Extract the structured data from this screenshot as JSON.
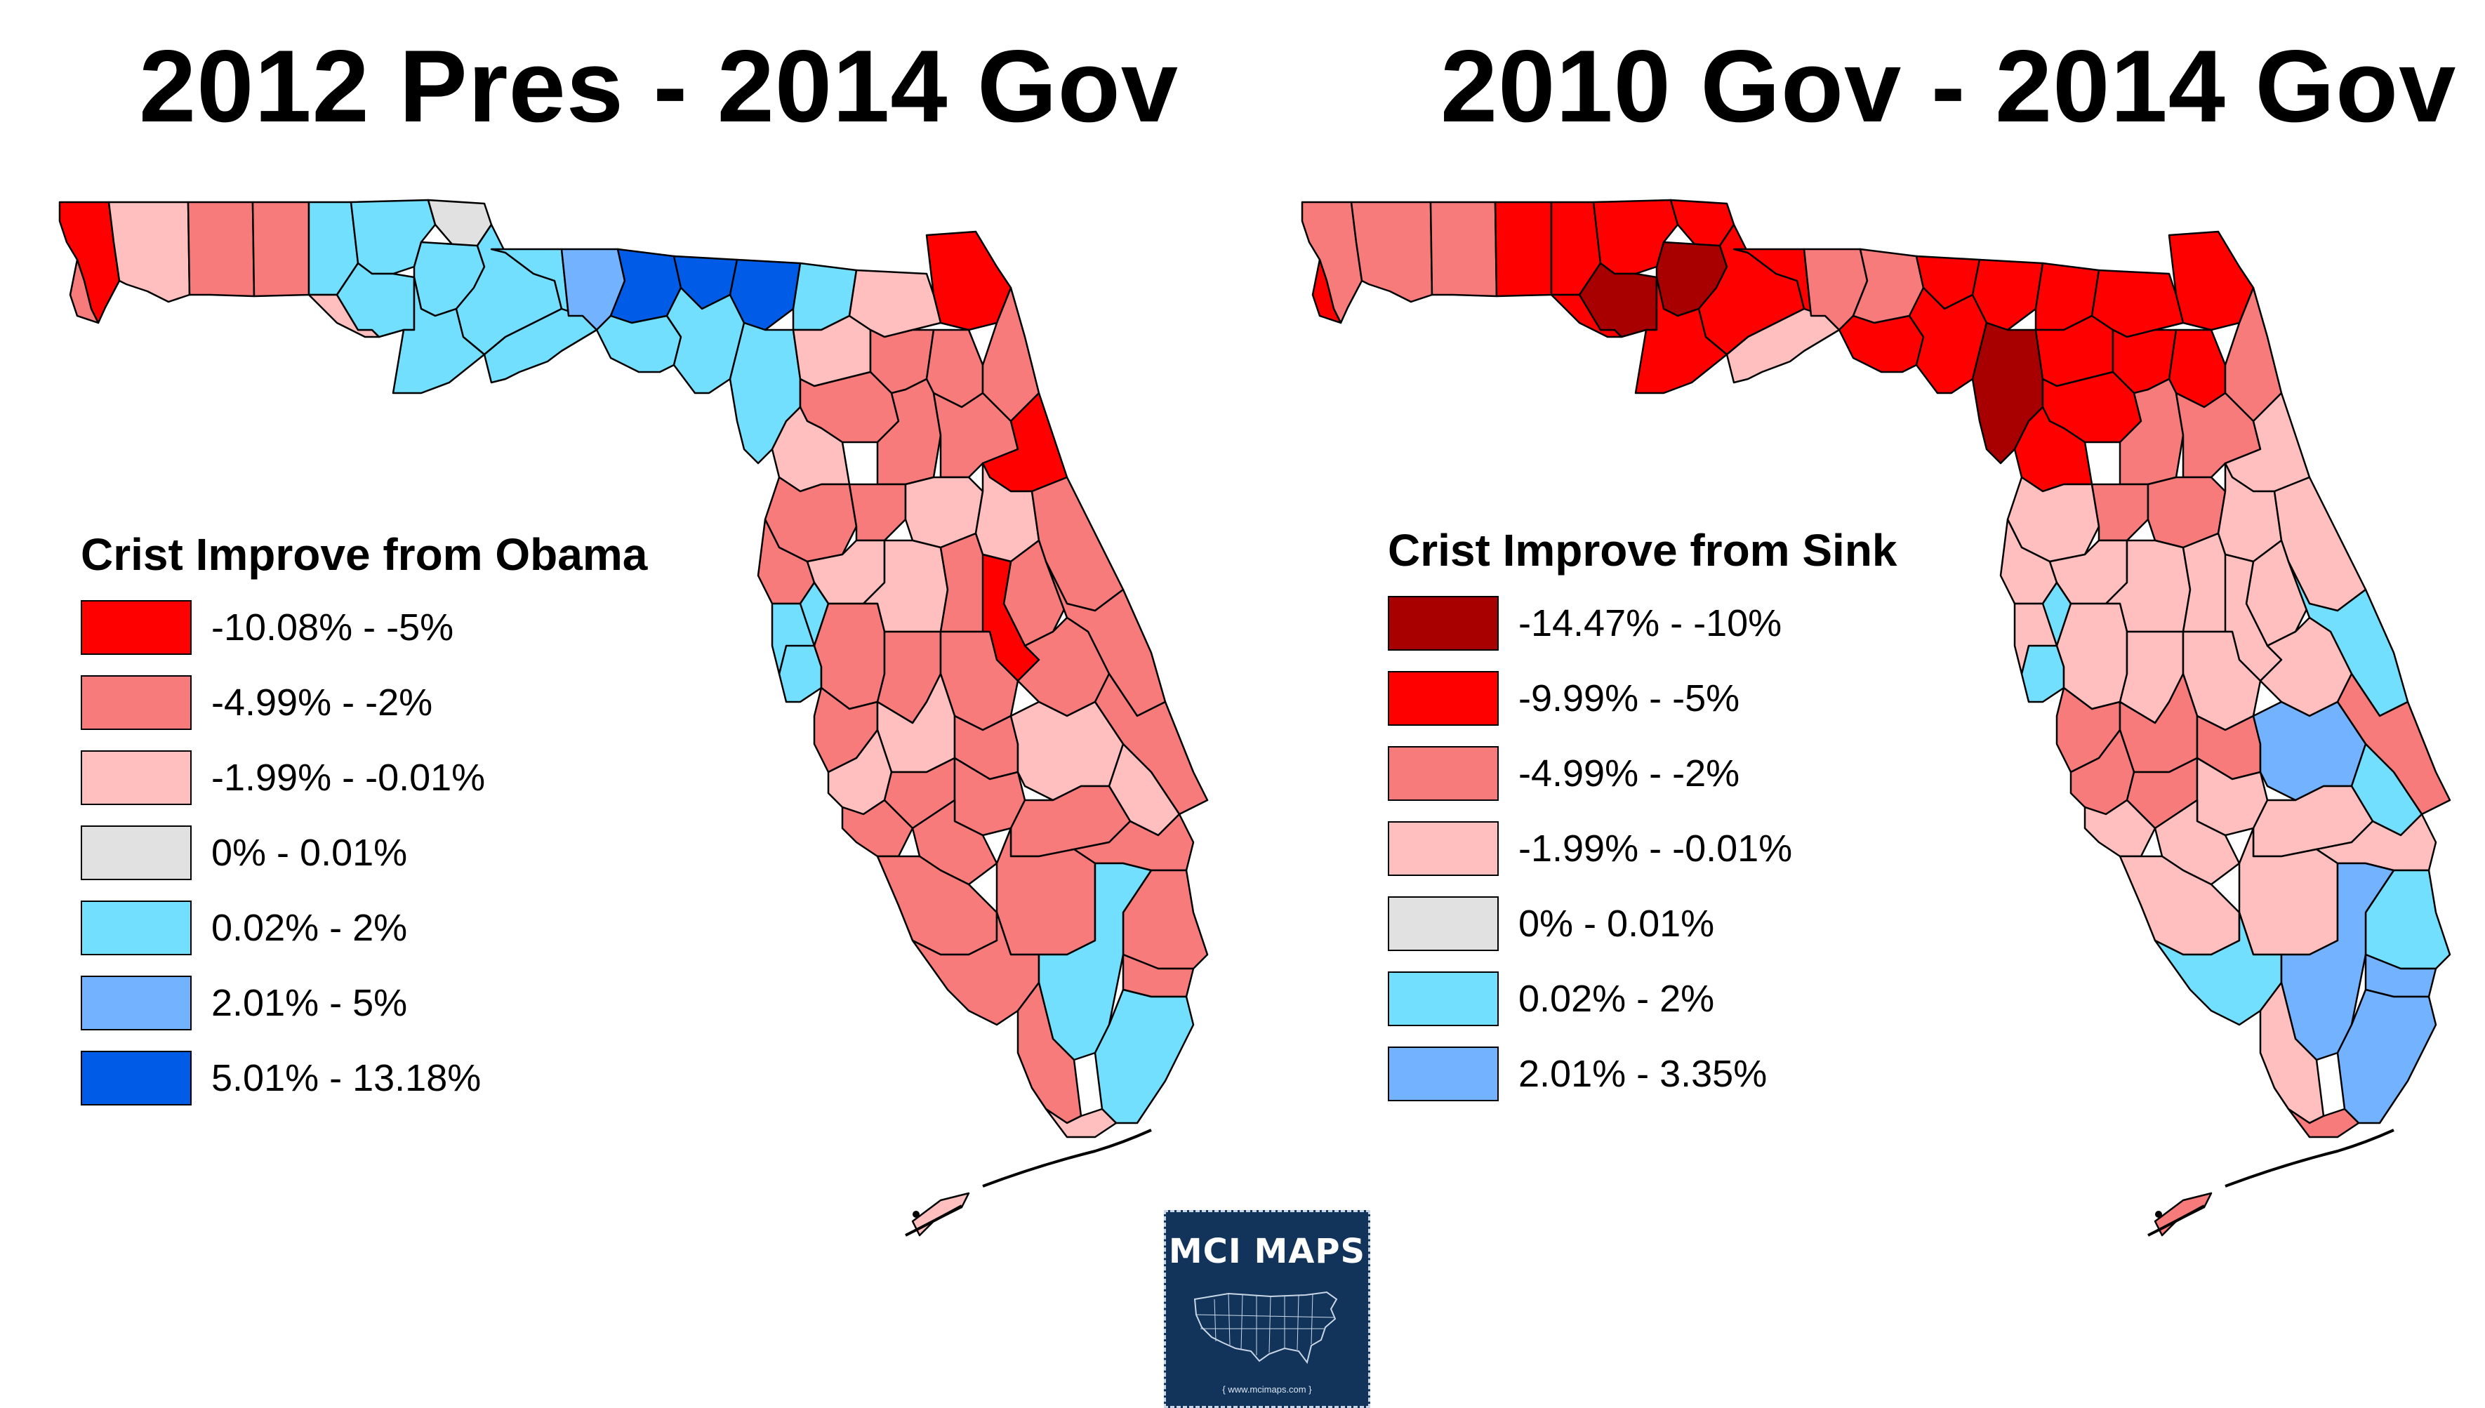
{
  "maps": [
    {
      "title": "2012 Pres - 2014 Gov",
      "legend_title": "Crist Improve from Obama",
      "legend": [
        {
          "label": "-10.08% - -5%",
          "color": "#ff0000"
        },
        {
          "label": "-4.99% - -2%",
          "color": "#f77b7b"
        },
        {
          "label": "-1.99% - -0.01%",
          "color": "#ffbfbf"
        },
        {
          "label": "0% - 0.01%",
          "color": "#e1e1e1"
        },
        {
          "label": "0.02% - 2%",
          "color": "#73dfff"
        },
        {
          "label": "2.01% - 5%",
          "color": "#73b2ff"
        },
        {
          "label": "5.01% - 13.18%",
          "color": "#005ce6"
        }
      ],
      "region_classes": [
        0,
        2,
        1,
        1,
        4,
        4,
        3,
        1,
        2,
        4,
        4,
        4,
        4,
        4,
        4,
        5,
        6,
        4,
        6,
        4,
        6,
        4,
        4,
        2,
        0,
        2,
        1,
        1,
        1,
        1,
        2,
        1,
        1,
        0,
        1,
        1,
        2,
        2,
        1,
        1,
        2,
        4,
        4,
        2,
        1,
        1,
        0,
        1,
        1,
        1,
        1,
        1,
        1,
        1,
        2,
        1,
        2,
        2,
        2,
        1,
        1,
        1,
        1,
        1,
        1,
        1,
        1,
        1,
        1,
        4,
        1,
        1,
        4
      ]
    },
    {
      "title": "2010 Gov - 2014 Gov",
      "legend_title": "Crist Improve from Sink",
      "legend": [
        {
          "label": "-14.47% - -10%",
          "color": "#a80000"
        },
        {
          "label": "-9.99% - -5%",
          "color": "#ff0000"
        },
        {
          "label": "-4.99% - -2%",
          "color": "#f77b7b"
        },
        {
          "label": "-1.99% - -0.01%",
          "color": "#ffbfbf"
        },
        {
          "label": "0% - 0.01%",
          "color": "#e1e1e1"
        },
        {
          "label": "0.02% - 2%",
          "color": "#73dfff"
        },
        {
          "label": "2.01% - 3.35%",
          "color": "#73b2ff"
        }
      ],
      "region_classes": [
        2,
        2,
        2,
        1,
        1,
        1,
        1,
        1,
        1,
        0,
        0,
        1,
        1,
        1,
        3,
        2,
        2,
        1,
        1,
        1,
        1,
        0,
        1,
        1,
        1,
        1,
        1,
        1,
        1,
        2,
        1,
        2,
        2,
        3,
        3,
        2,
        2,
        3,
        3,
        3,
        3,
        5,
        3,
        3,
        3,
        3,
        3,
        5,
        3,
        3,
        3,
        3,
        2,
        2,
        2,
        2,
        6,
        5,
        2,
        2,
        3,
        3,
        3,
        3,
        3,
        3,
        3,
        5,
        5,
        6,
        6,
        3,
        6
      ]
    }
  ],
  "logo": {
    "text": "MCI MAPS",
    "url": "{ www.mcimaps.com }",
    "icon": "us-map-icon"
  }
}
